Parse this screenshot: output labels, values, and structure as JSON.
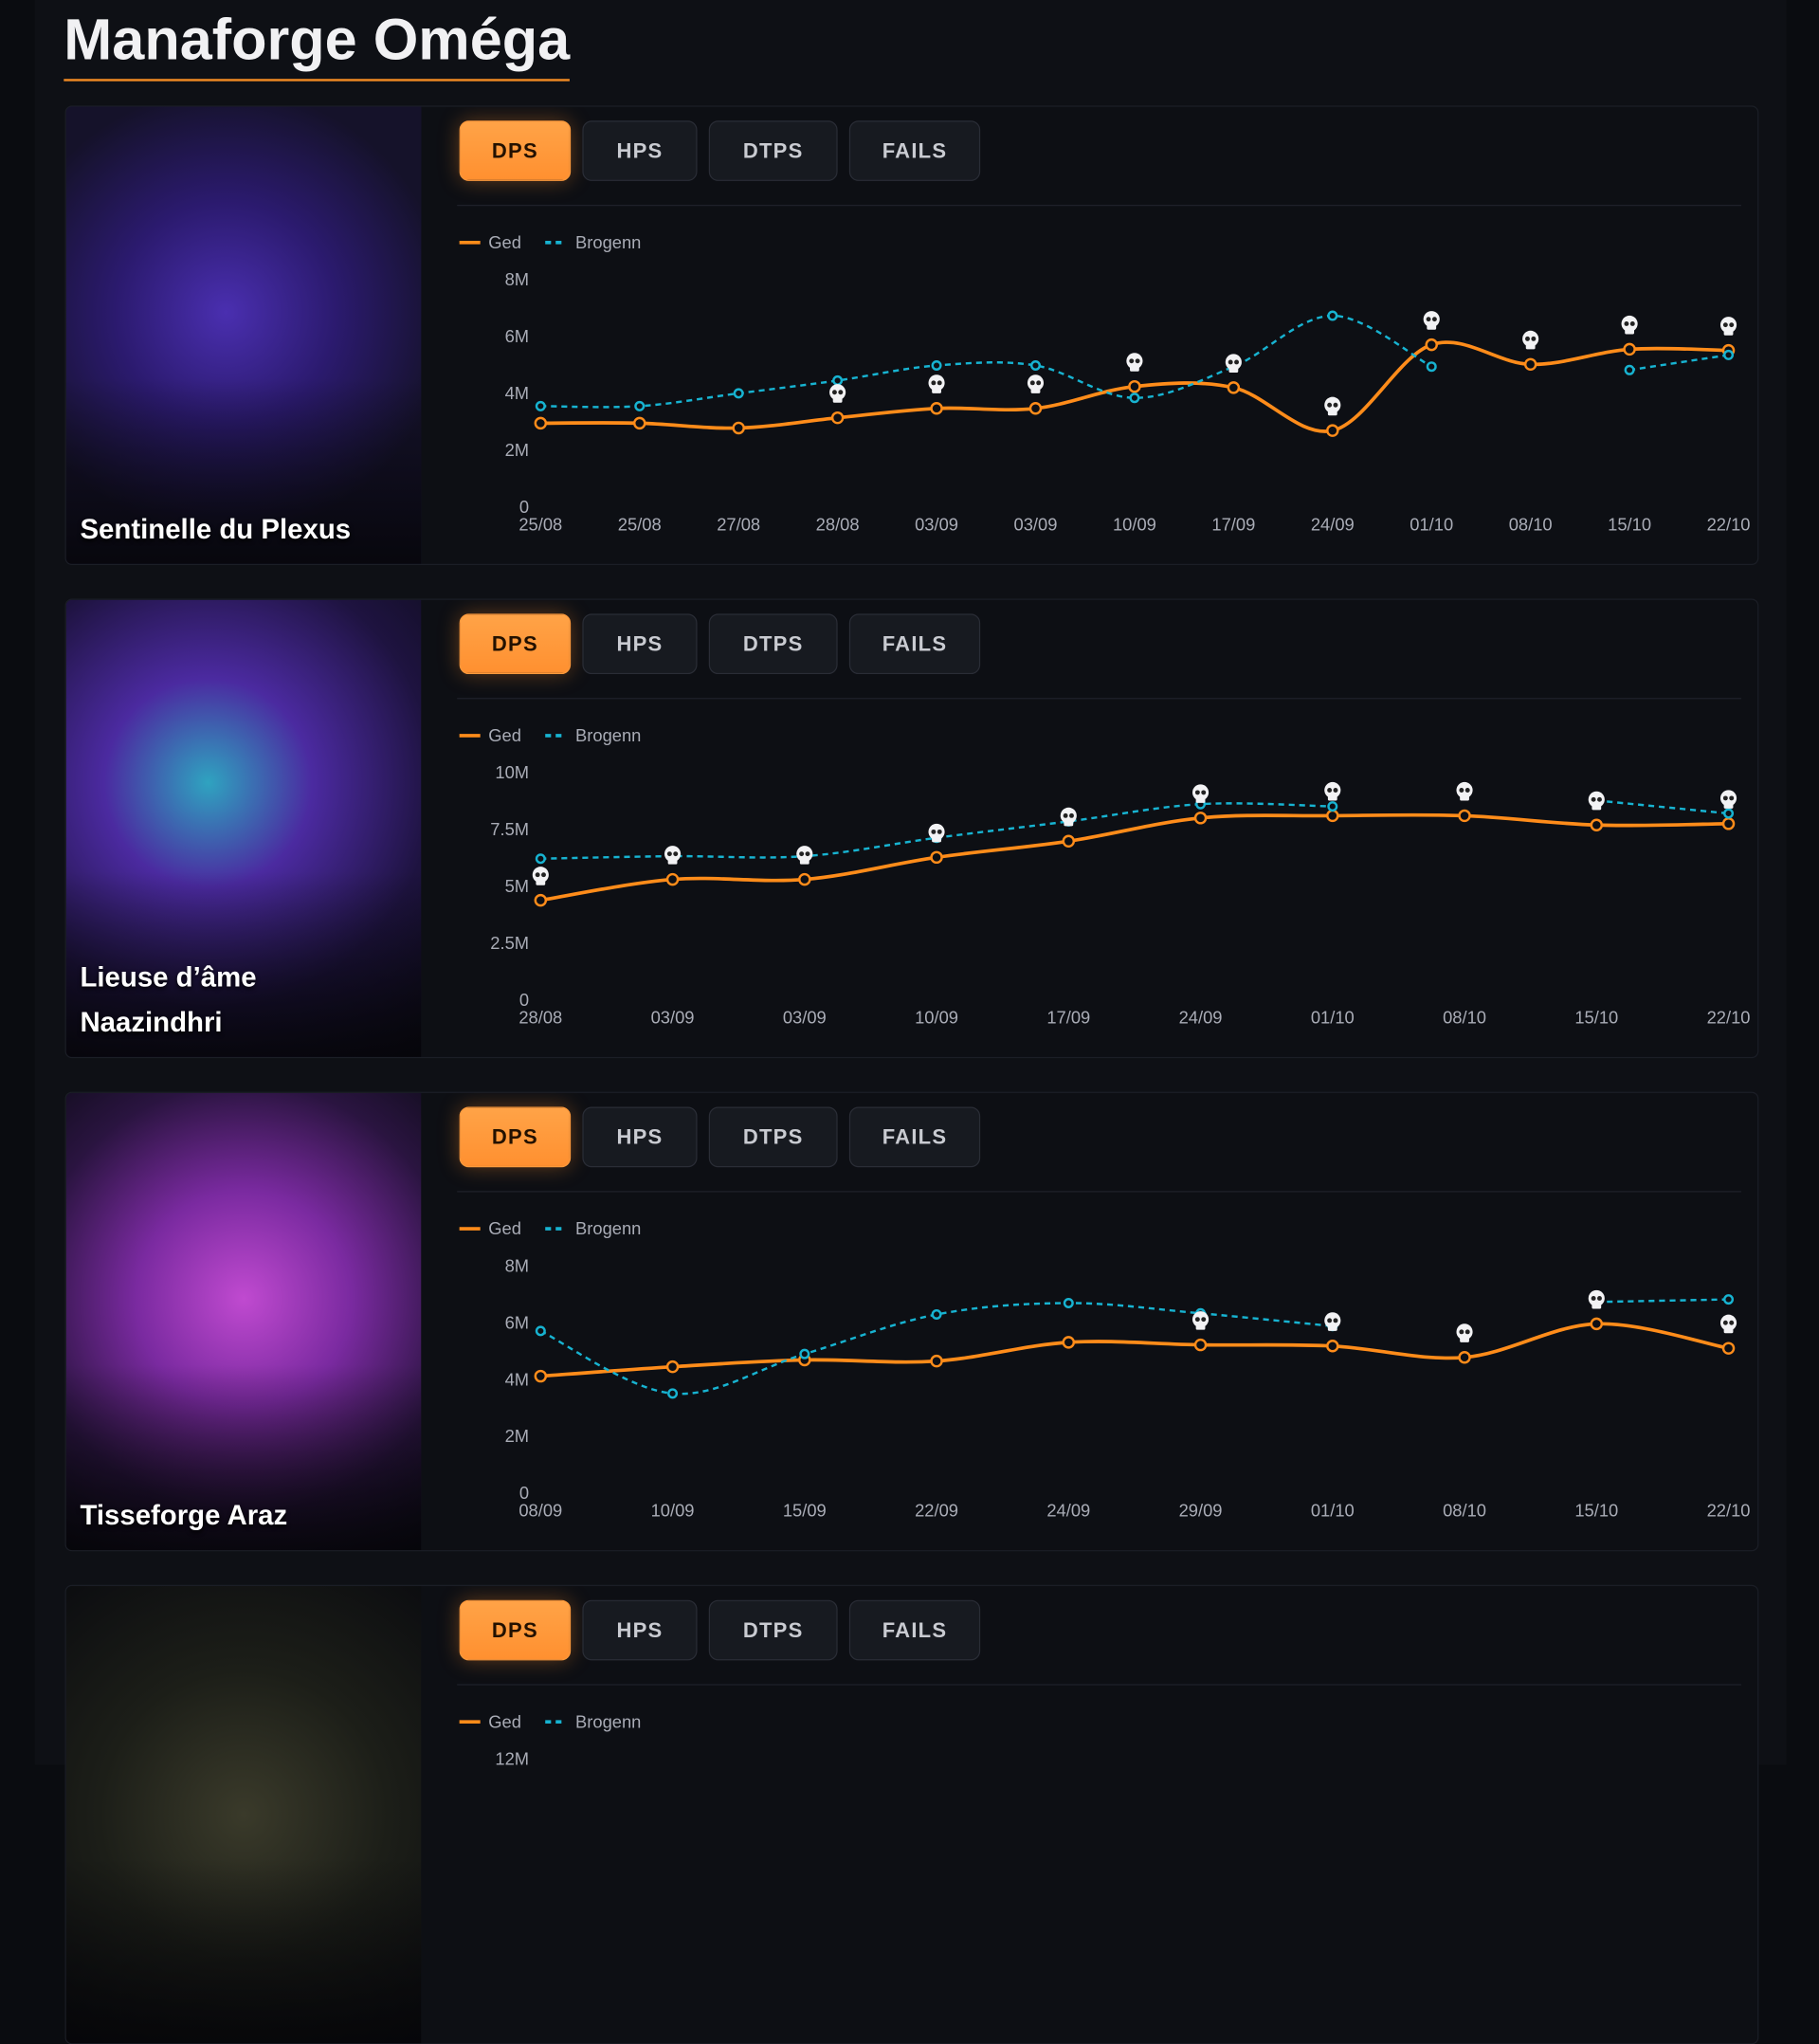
{
  "title": "Manaforge Oméga",
  "bosses": [
    {
      "name": "Sentinelle du Plexus",
      "tabs": [
        "DPS",
        "HPS",
        "DTPS",
        "FAILS"
      ],
      "chart_data": {
        "type": "line",
        "categories": [
          "25/08",
          "25/08",
          "27/08",
          "28/08",
          "03/09",
          "03/09",
          "10/09",
          "17/09",
          "24/09",
          "01/10",
          "08/10",
          "15/10",
          "22/10"
        ],
        "series": [
          {
            "name": "Ged",
            "color": "#ff8c1a",
            "values": [
              2950000,
              2950000,
              2780000,
              3140000,
              3470000,
              3470000,
              4240000,
              4200000,
              2690000,
              5710000,
              5020000,
              5550000,
              5510000
            ],
            "deaths": [
              false,
              false,
              false,
              true,
              true,
              true,
              true,
              true,
              true,
              true,
              true,
              true,
              true
            ]
          },
          {
            "name": "Brogenn",
            "color": "#17b3d1",
            "values": [
              3550000,
              3550000,
              4000000,
              4450000,
              4980000,
              4980000,
              3840000,
              4940000,
              6730000,
              4940000,
              null,
              4820000,
              5350000
            ]
          }
        ],
        "ylim": [
          0,
          8000000
        ],
        "yticks": [
          0,
          {
            "value": 2000000,
            "label": "2M"
          },
          {
            "value": 4000000,
            "label": "4M"
          },
          {
            "value": 6000000,
            "label": "6M"
          },
          {
            "value": 8000000,
            "label": "8M"
          }
        ]
      }
    },
    {
      "name": "Lieuse d’âme Naazindhri",
      "tabs": [
        "DPS",
        "HPS",
        "DTPS",
        "FAILS"
      ],
      "chart_data": {
        "type": "line",
        "categories": [
          "28/08",
          "03/09",
          "03/09",
          "10/09",
          "17/09",
          "24/09",
          "01/10",
          "08/10",
          "15/10",
          "22/10"
        ],
        "series": [
          {
            "name": "Ged",
            "color": "#ff8c1a",
            "values": [
              4390000,
              5310000,
              5310000,
              6280000,
              6990000,
              8010000,
              8110000,
              8110000,
              7700000,
              7760000
            ],
            "deaths": [
              true,
              true,
              true,
              true,
              true,
              true,
              true,
              true,
              true,
              true
            ]
          },
          {
            "name": "Brogenn",
            "color": "#17b3d1",
            "values": [
              6220000,
              6330000,
              6330000,
              7140000,
              7860000,
              8620000,
              8520000,
              null,
              8780000,
              8210000
            ]
          }
        ],
        "ylim": [
          0,
          10000000
        ],
        "yticks": [
          0,
          {
            "value": 2500000,
            "label": "2.5M"
          },
          {
            "value": 5000000,
            "label": "5M"
          },
          {
            "value": 7500000,
            "label": "7.5M"
          },
          {
            "value": 10000000,
            "label": "10M"
          }
        ]
      }
    },
    {
      "name": "Tisseforge Araz",
      "tabs": [
        "DPS",
        "HPS",
        "DTPS",
        "FAILS"
      ],
      "chart_data": {
        "type": "line",
        "categories": [
          "08/09",
          "10/09",
          "15/09",
          "22/09",
          "24/09",
          "29/09",
          "01/10",
          "08/10",
          "15/10",
          "22/10"
        ],
        "series": [
          {
            "name": "Ged",
            "color": "#ff8c1a",
            "values": [
              4120000,
              4450000,
              4690000,
              4650000,
              5310000,
              5220000,
              5180000,
              4780000,
              5960000,
              5100000
            ],
            "deaths": [
              false,
              false,
              false,
              false,
              false,
              true,
              true,
              true,
              true,
              true
            ]
          },
          {
            "name": "Brogenn",
            "color": "#17b3d1",
            "values": [
              5710000,
              3510000,
              4900000,
              6290000,
              6690000,
              6330000,
              5880000,
              null,
              6730000,
              6820000
            ]
          }
        ],
        "ylim": [
          0,
          8000000
        ],
        "yticks": [
          0,
          {
            "value": 2000000,
            "label": "2M"
          },
          {
            "value": 4000000,
            "label": "4M"
          },
          {
            "value": 6000000,
            "label": "6M"
          },
          {
            "value": 8000000,
            "label": "8M"
          }
        ]
      }
    },
    {
      "tabs": [
        "DPS",
        "HPS",
        "DTPS",
        "FAILS"
      ],
      "chart_data": {
        "type": "line",
        "categories": [],
        "series": [
          {
            "name": "Ged",
            "color": "#ff8c1a",
            "values": []
          },
          {
            "name": "Brogenn",
            "color": "#17b3d1",
            "values": []
          }
        ],
        "ylim": [
          0,
          12000000
        ],
        "yticks": [
          {
            "value": 12000000,
            "label": "12M"
          }
        ]
      }
    }
  ]
}
